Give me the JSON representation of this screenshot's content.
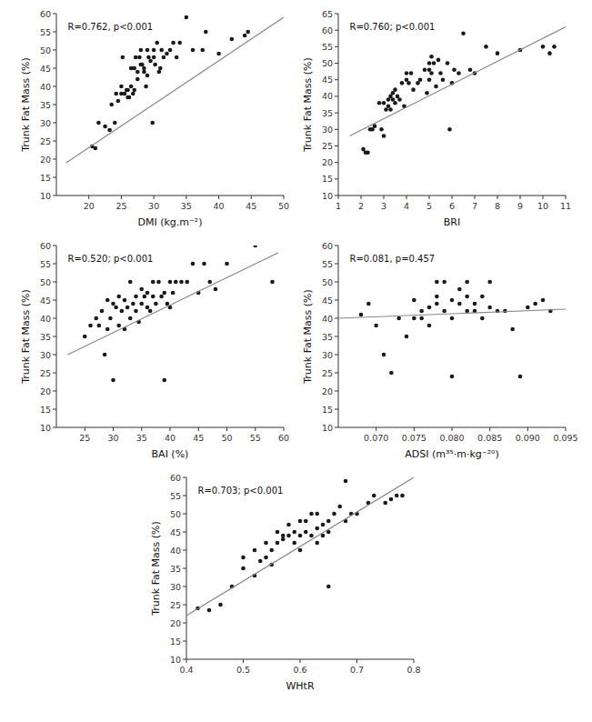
{
  "chart_data": [
    {
      "type": "scatter",
      "annotation": "R=0.762, p<0.001",
      "xlabel": "DMI (kg.m⁻²)",
      "ylabel": "Trunk Fat Mass (%)",
      "xlim": [
        15,
        50
      ],
      "ylim": [
        10,
        60
      ],
      "xticks": [
        20,
        25,
        30,
        35,
        40,
        45,
        50
      ],
      "yticks": [
        10,
        15,
        20,
        25,
        30,
        35,
        40,
        45,
        50,
        55,
        60
      ],
      "series": [
        {
          "type": "scatter",
          "color": "#1a1a1a",
          "x": [
            20.5,
            21.0,
            21.5,
            22.5,
            23.2,
            23.5,
            24.0,
            24.2,
            24.5,
            25.0,
            25.0,
            25.2,
            25.5,
            25.8,
            26.0,
            26.0,
            26.2,
            26.5,
            26.5,
            26.8,
            27.0,
            27.0,
            27.2,
            27.5,
            27.5,
            27.8,
            28.0,
            28.0,
            28.2,
            28.5,
            28.5,
            28.8,
            29.0,
            29.0,
            29.2,
            29.5,
            29.8,
            30.0,
            30.0,
            30.2,
            30.5,
            30.8,
            31.0,
            31.2,
            31.5,
            32.0,
            32.5,
            33.0,
            33.5,
            34.0,
            35.0,
            36.0,
            37.5,
            38.0,
            40.0,
            42.0,
            44.0,
            44.5
          ],
          "values": [
            23.5,
            23.0,
            30.0,
            29.0,
            28.0,
            35.0,
            30.0,
            38.0,
            36.0,
            38.0,
            40.0,
            48.0,
            38.0,
            39.0,
            39.0,
            37.0,
            37.0,
            40.0,
            45.0,
            38.0,
            39.0,
            45.0,
            48.0,
            42.0,
            44.0,
            48.0,
            46.0,
            50.0,
            46.0,
            45.0,
            44.0,
            40.0,
            43.0,
            50.0,
            48.0,
            47.0,
            30.0,
            48.0,
            50.0,
            46.0,
            52.0,
            44.0,
            45.0,
            50.0,
            48.0,
            49.0,
            50.0,
            52.0,
            48.0,
            52.0,
            59.0,
            50.0,
            50.0,
            55.0,
            49.0,
            53.0,
            54.0,
            55.0
          ]
        },
        {
          "type": "line",
          "color": "#888888",
          "x": [
            16.5,
            50
          ],
          "values": [
            19.0,
            59.0
          ]
        }
      ]
    },
    {
      "type": "scatter",
      "annotation": "R=0.760; p<0.001",
      "xlabel": "BRI",
      "ylabel": "Trunk Fat Mass (%)",
      "xlim": [
        1,
        11
      ],
      "ylim": [
        10,
        65
      ],
      "xticks": [
        1,
        2,
        3,
        4,
        5,
        6,
        7,
        8,
        9,
        10,
        11
      ],
      "yticks": [
        10,
        15,
        20,
        25,
        30,
        35,
        40,
        45,
        50,
        55,
        60,
        65
      ],
      "series": [
        {
          "type": "scatter",
          "color": "#1a1a1a",
          "x": [
            2.1,
            2.2,
            2.3,
            2.4,
            2.5,
            2.6,
            2.8,
            2.9,
            3.0,
            3.0,
            3.1,
            3.2,
            3.2,
            3.3,
            3.3,
            3.4,
            3.4,
            3.5,
            3.5,
            3.6,
            3.7,
            3.8,
            3.9,
            4.0,
            4.0,
            4.1,
            4.2,
            4.3,
            4.5,
            4.6,
            4.8,
            4.9,
            5.0,
            5.0,
            5.0,
            5.1,
            5.1,
            5.2,
            5.3,
            5.4,
            5.5,
            5.6,
            5.8,
            5.9,
            6.0,
            6.1,
            6.3,
            6.5,
            6.8,
            7.0,
            7.5,
            8.0,
            9.0,
            10.0,
            10.3,
            10.5
          ],
          "values": [
            24.0,
            23.0,
            23.0,
            30.0,
            30.0,
            31.0,
            38.0,
            30.0,
            28.0,
            38.0,
            36.0,
            37.0,
            39.0,
            36.0,
            40.0,
            39.0,
            41.0,
            38.0,
            42.0,
            40.0,
            39.0,
            44.0,
            37.0,
            45.0,
            47.0,
            44.0,
            47.0,
            42.0,
            44.0,
            45.0,
            48.0,
            41.0,
            48.0,
            45.0,
            50.0,
            47.0,
            52.0,
            50.0,
            43.0,
            51.0,
            47.0,
            45.0,
            50.0,
            30.0,
            44.0,
            48.0,
            47.0,
            59.0,
            48.0,
            47.0,
            55.0,
            53.0,
            54.0,
            55.0,
            53.0,
            55.0
          ]
        },
        {
          "type": "line",
          "color": "#888888",
          "x": [
            1.5,
            11
          ],
          "values": [
            28.0,
            61.0
          ]
        }
      ]
    },
    {
      "type": "scatter",
      "annotation": "R=0.520; p<0.001",
      "xlabel": "BAI (%)",
      "ylabel": "Trunk Fat Mass (%)",
      "xlim": [
        20,
        60
      ],
      "ylim": [
        10,
        60
      ],
      "xticks": [
        25,
        30,
        35,
        40,
        45,
        50,
        55,
        60
      ],
      "yticks": [
        10,
        15,
        20,
        25,
        30,
        35,
        40,
        45,
        50,
        55,
        60
      ],
      "series": [
        {
          "type": "scatter",
          "color": "#1a1a1a",
          "x": [
            25.0,
            26.0,
            27.0,
            27.5,
            28.0,
            28.5,
            29.0,
            29.0,
            29.5,
            30.0,
            30.0,
            30.5,
            31.0,
            31.0,
            31.5,
            32.0,
            32.0,
            32.5,
            33.0,
            33.0,
            33.5,
            34.0,
            34.0,
            34.5,
            35.0,
            35.0,
            35.5,
            36.0,
            36.0,
            36.5,
            37.0,
            37.0,
            37.5,
            38.0,
            38.5,
            39.0,
            39.0,
            39.5,
            40.0,
            40.0,
            40.5,
            41.0,
            42.0,
            43.0,
            44.0,
            45.0,
            46.0,
            47.0,
            48.0,
            50.0,
            55.0,
            58.0
          ],
          "values": [
            35.0,
            38.0,
            40.0,
            38.0,
            42.0,
            30.0,
            37.0,
            45.0,
            40.0,
            23.0,
            44.0,
            43.0,
            38.0,
            46.0,
            42.0,
            37.0,
            45.0,
            43.0,
            40.0,
            50.0,
            44.0,
            42.0,
            46.0,
            39.0,
            44.0,
            48.0,
            46.0,
            43.0,
            47.0,
            42.0,
            46.0,
            50.0,
            44.0,
            50.0,
            46.0,
            47.0,
            23.0,
            44.0,
            43.0,
            50.0,
            47.0,
            50.0,
            50.0,
            50.0,
            55.0,
            47.0,
            55.0,
            50.0,
            48.0,
            55.0,
            60.0,
            50.0
          ]
        },
        {
          "type": "line",
          "color": "#888888",
          "x": [
            22,
            59
          ],
          "values": [
            30.0,
            58.0
          ]
        }
      ]
    },
    {
      "type": "scatter",
      "annotation": "R=0.081, p=0.457",
      "xlabel": "ADSI (m³⁵·m·kg⁻²⁰)",
      "ylabel": "Trunk Fat Mass (%)",
      "xlim": [
        0.065,
        0.095
      ],
      "ylim": [
        10,
        60
      ],
      "xticks": [
        {
          "value": 0.07,
          "label": "0.070"
        },
        0.075,
        {
          "value": 0.08,
          "label": "0.080"
        },
        0.085,
        {
          "value": 0.09,
          "label": "0.090"
        },
        0.095
      ],
      "yticks": [
        10,
        15,
        20,
        25,
        30,
        35,
        40,
        45,
        50,
        55,
        60
      ],
      "series": [
        {
          "type": "scatter",
          "color": "#1a1a1a",
          "x": [
            0.068,
            0.069,
            0.07,
            0.071,
            0.072,
            0.073,
            0.074,
            0.075,
            0.075,
            0.076,
            0.076,
            0.077,
            0.077,
            0.078,
            0.078,
            0.078,
            0.079,
            0.079,
            0.08,
            0.08,
            0.08,
            0.081,
            0.081,
            0.082,
            0.082,
            0.082,
            0.083,
            0.083,
            0.084,
            0.084,
            0.085,
            0.085,
            0.086,
            0.087,
            0.088,
            0.089,
            0.09,
            0.091,
            0.092,
            0.093
          ],
          "values": [
            41.0,
            44.0,
            38.0,
            30.0,
            25.0,
            40.0,
            35.0,
            40.0,
            45.0,
            40.0,
            42.0,
            38.0,
            43.0,
            44.0,
            46.0,
            50.0,
            42.0,
            50.0,
            40.0,
            45.0,
            24.0,
            44.0,
            48.0,
            42.0,
            46.0,
            50.0,
            44.0,
            42.0,
            40.0,
            46.0,
            43.0,
            50.0,
            42.0,
            42.0,
            37.0,
            24.0,
            43.0,
            44.0,
            45.0,
            42.0
          ]
        },
        {
          "type": "line",
          "color": "#888888",
          "x": [
            0.065,
            0.095
          ],
          "values": [
            40.0,
            42.5
          ]
        }
      ]
    },
    {
      "type": "scatter",
      "annotation": "R=0.703; p<0.001",
      "xlabel": "WHtR",
      "ylabel": "Trunk Fat Mass (%)",
      "xlim": [
        0.4,
        0.8
      ],
      "ylim": [
        10,
        60
      ],
      "xticks": [
        0.4,
        0.5,
        0.6,
        0.7,
        0.8
      ],
      "yticks": [
        10,
        15,
        20,
        25,
        30,
        35,
        40,
        45,
        50,
        55,
        60
      ],
      "series": [
        {
          "type": "scatter",
          "color": "#1a1a1a",
          "x": [
            0.42,
            0.44,
            0.46,
            0.48,
            0.5,
            0.5,
            0.52,
            0.52,
            0.53,
            0.54,
            0.54,
            0.55,
            0.55,
            0.56,
            0.56,
            0.57,
            0.57,
            0.58,
            0.58,
            0.59,
            0.59,
            0.6,
            0.6,
            0.6,
            0.61,
            0.61,
            0.62,
            0.62,
            0.63,
            0.63,
            0.63,
            0.64,
            0.64,
            0.65,
            0.65,
            0.65,
            0.66,
            0.67,
            0.68,
            0.68,
            0.69,
            0.7,
            0.72,
            0.73,
            0.75,
            0.76,
            0.77,
            0.78
          ],
          "values": [
            24.0,
            23.5,
            25.0,
            30.0,
            35.0,
            38.0,
            33.0,
            40.0,
            37.0,
            38.0,
            42.0,
            36.0,
            40.0,
            42.0,
            45.0,
            43.0,
            44.0,
            44.0,
            47.0,
            42.0,
            45.0,
            40.0,
            44.0,
            48.0,
            45.0,
            48.0,
            44.0,
            50.0,
            42.0,
            46.0,
            50.0,
            44.0,
            47.0,
            45.0,
            48.0,
            30.0,
            50.0,
            52.0,
            48.0,
            59.0,
            50.0,
            50.0,
            53.0,
            55.0,
            53.0,
            54.0,
            55.0,
            55.0
          ]
        },
        {
          "type": "line",
          "color": "#888888",
          "x": [
            0.4,
            0.8
          ],
          "values": [
            22.0,
            60.0
          ]
        }
      ]
    }
  ]
}
